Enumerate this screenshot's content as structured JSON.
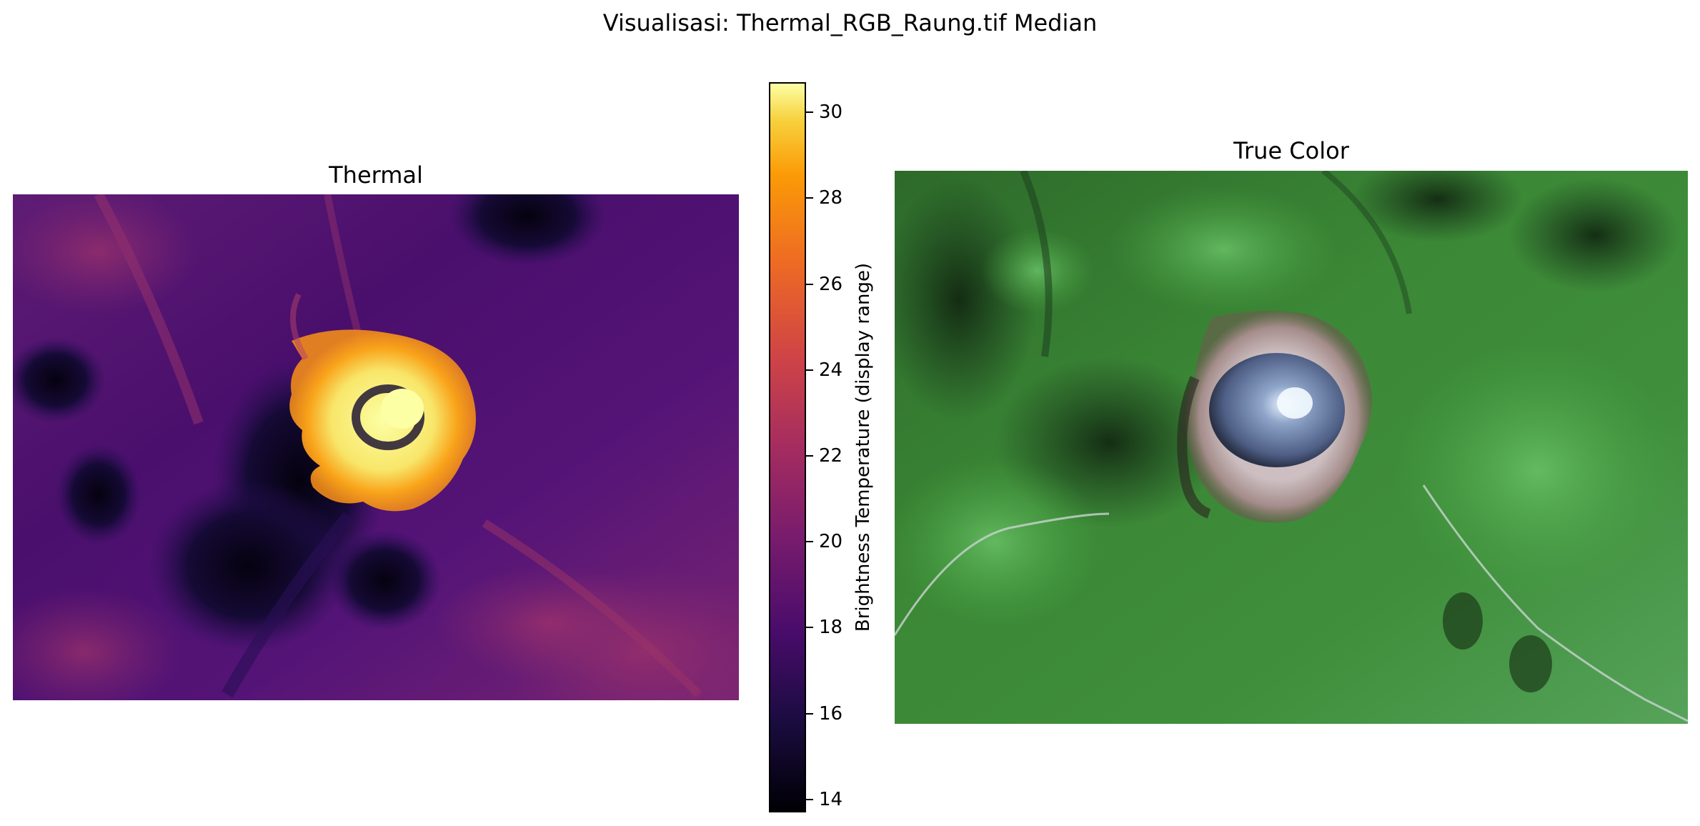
{
  "figure": {
    "suptitle": "Visualisasi: Thermal_RGB_Raung.tif Median"
  },
  "thermal_panel": {
    "title": "Thermal",
    "colormap": "inferno"
  },
  "truecolor_panel": {
    "title": "True Color"
  },
  "colorbar": {
    "label": "Brightness Temperature (display range)",
    "min": 13.7,
    "max": 30.7,
    "ticks": [
      "14",
      "16",
      "18",
      "20",
      "22",
      "24",
      "26",
      "28",
      "30"
    ]
  },
  "colors": {
    "forest_dark": "#1f4a1c",
    "forest_light": "#4aa642",
    "crater_rim": "#cdbfc1",
    "crater_lake": "#5f6f96",
    "thermal_hot": "#fcff9e",
    "thermal_cold": "#000004"
  }
}
